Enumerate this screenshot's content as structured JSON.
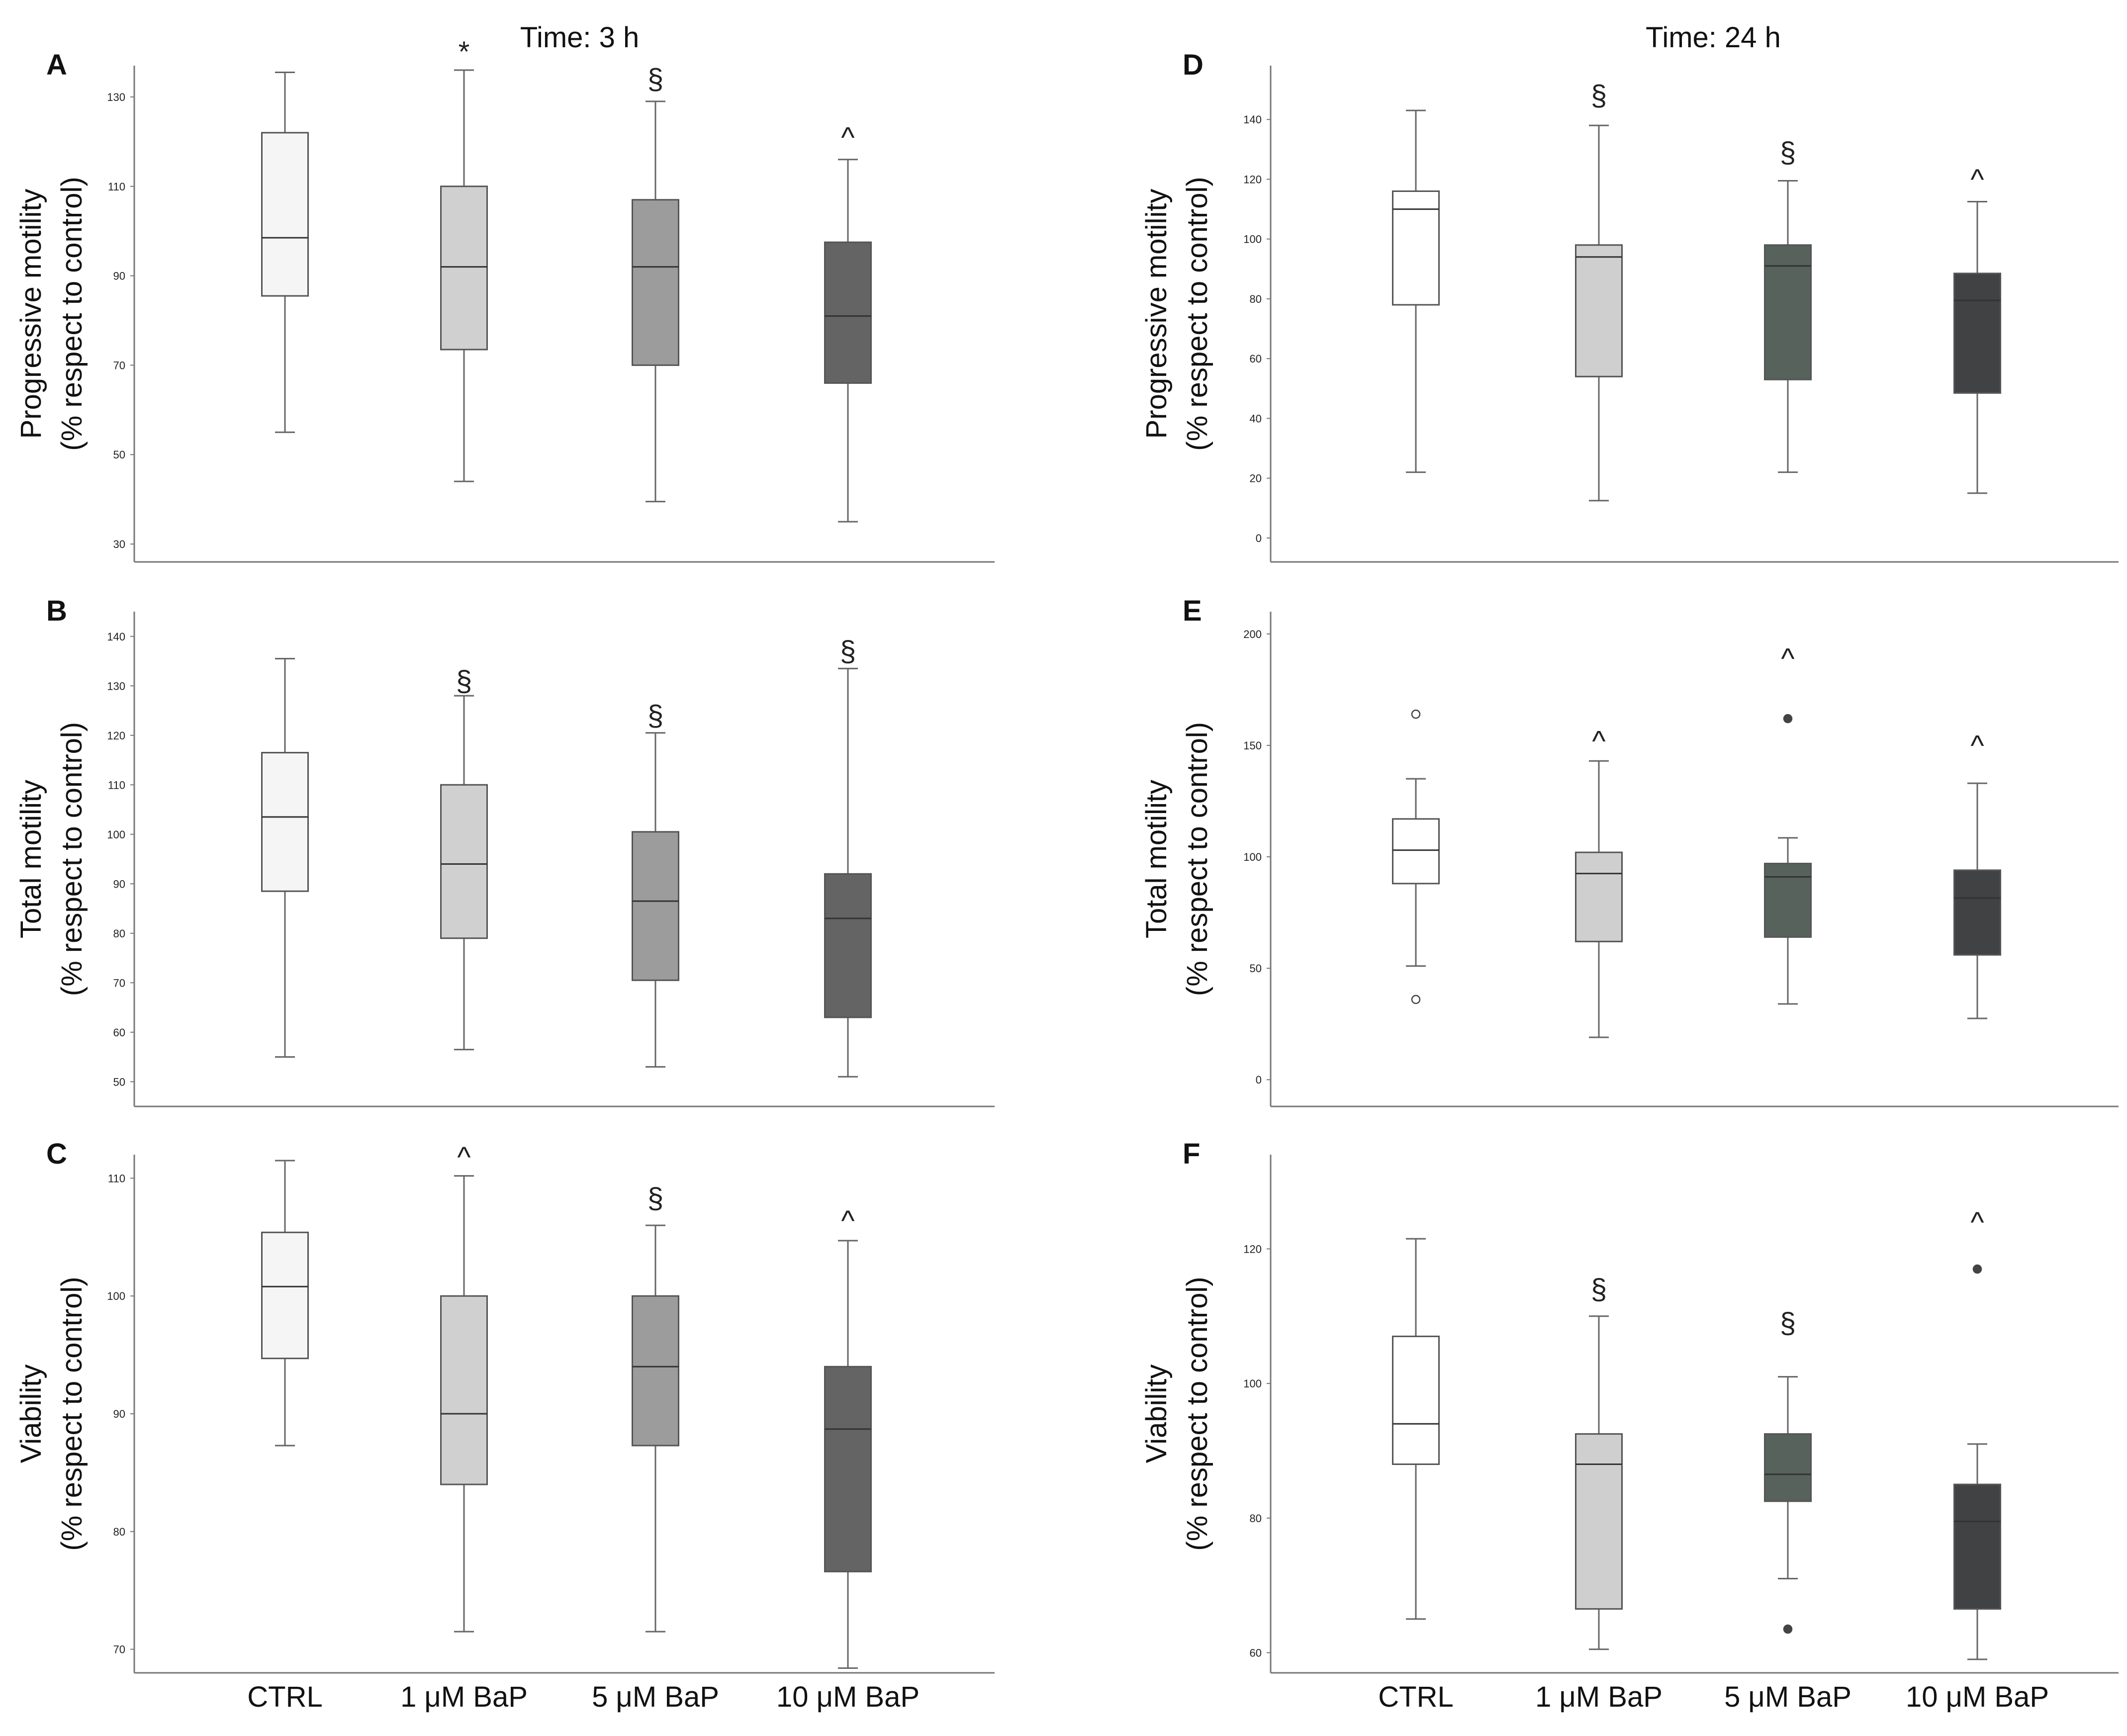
{
  "categories": [
    "CTRL",
    "1 μM BaP",
    "5 μM BaP",
    "10 μM BaP"
  ],
  "chart_data": [
    {
      "type": "box",
      "panel": "A",
      "title": "Time: 3 h",
      "ylabel_line1": "Progressive motility",
      "ylabel_line2": "(% respect to control)",
      "ylim": [
        26,
        137
      ],
      "yticks": [
        30,
        50,
        70,
        90,
        110,
        130
      ],
      "boxes": [
        {
          "category": "CTRL",
          "whisker_low": 55,
          "q1": 85.5,
          "median": 98.5,
          "q3": 122,
          "whisker_high": 135.5,
          "color": "#f5f5f5",
          "outliers": []
        },
        {
          "category": "1 μM BaP",
          "whisker_low": 44,
          "q1": 73.5,
          "median": 92,
          "q3": 110,
          "whisker_high": 136,
          "color": "#d0d0d0",
          "outliers": []
        },
        {
          "category": "5 μM BaP",
          "whisker_low": 39.5,
          "q1": 70,
          "median": 92,
          "q3": 107,
          "whisker_high": 129,
          "color": "#9c9c9c",
          "outliers": []
        },
        {
          "category": "10 μM BaP",
          "whisker_low": 35,
          "q1": 66,
          "median": 81,
          "q3": 97.5,
          "whisker_high": 116,
          "color": "#646464",
          "outliers": []
        }
      ],
      "annotations": [
        {
          "category": "1 μM BaP",
          "text": "*",
          "y": 141
        },
        {
          "category": "5 μM BaP",
          "text": "§",
          "y": 134
        },
        {
          "category": "10 μM BaP",
          "text": "^",
          "y": 121
        }
      ]
    },
    {
      "type": "box",
      "panel": "B",
      "title": "",
      "ylabel_line1": "Total motility",
      "ylabel_line2": "(% respect to control)",
      "ylim": [
        45,
        145
      ],
      "yticks": [
        50,
        60,
        70,
        80,
        90,
        100,
        110,
        120,
        130,
        140
      ],
      "boxes": [
        {
          "category": "CTRL",
          "whisker_low": 55,
          "q1": 88.5,
          "median": 103.5,
          "q3": 116.5,
          "whisker_high": 135.5,
          "color": "#f5f5f5",
          "outliers": []
        },
        {
          "category": "1 μM BaP",
          "whisker_low": 56.5,
          "q1": 79,
          "median": 94,
          "q3": 110,
          "whisker_high": 128,
          "color": "#d0d0d0",
          "outliers": []
        },
        {
          "category": "5 μM BaP",
          "whisker_low": 53,
          "q1": 70.5,
          "median": 86.5,
          "q3": 100.5,
          "whisker_high": 120.5,
          "color": "#9c9c9c",
          "outliers": []
        },
        {
          "category": "10 μM BaP",
          "whisker_low": 51,
          "q1": 63,
          "median": 83,
          "q3": 92,
          "whisker_high": 133.5,
          "color": "#646464",
          "outliers": []
        }
      ],
      "annotations": [
        {
          "category": "1 μM BaP",
          "text": "§",
          "y": 131
        },
        {
          "category": "5 μM BaP",
          "text": "§",
          "y": 124
        },
        {
          "category": "10 μM BaP",
          "text": "§",
          "y": 137
        }
      ]
    },
    {
      "type": "box",
      "panel": "C",
      "title": "",
      "ylabel_line1": "Viability",
      "ylabel_line2": "(% respect to control)",
      "ylim": [
        68,
        112
      ],
      "yticks": [
        70,
        80,
        90,
        100,
        110
      ],
      "boxes": [
        {
          "category": "CTRL",
          "whisker_low": 87.3,
          "q1": 94.7,
          "median": 100.8,
          "q3": 105.4,
          "whisker_high": 111.5,
          "color": "#f5f5f5",
          "outliers": []
        },
        {
          "category": "1 μM BaP",
          "whisker_low": 71.5,
          "q1": 84,
          "median": 90,
          "q3": 100,
          "whisker_high": 110.2,
          "color": "#d0d0d0",
          "outliers": []
        },
        {
          "category": "5 μM BaP",
          "whisker_low": 71.5,
          "q1": 87.3,
          "median": 94,
          "q3": 100,
          "whisker_high": 106,
          "color": "#9c9c9c",
          "outliers": []
        },
        {
          "category": "10 μM BaP",
          "whisker_low": 68.4,
          "q1": 76.6,
          "median": 88.7,
          "q3": 94,
          "whisker_high": 104.7,
          "color": "#646464",
          "outliers": []
        }
      ],
      "annotations": [
        {
          "category": "1 μM BaP",
          "text": "^",
          "y": 111.8
        },
        {
          "category": "5 μM BaP",
          "text": "§",
          "y": 108.3
        },
        {
          "category": "10 μM BaP",
          "text": "^",
          "y": 106.4
        }
      ]
    },
    {
      "type": "box",
      "panel": "D",
      "title": "Time: 24 h",
      "ylabel_line1": "Progressive motility",
      "ylabel_line2": "(% respect to control)",
      "ylim": [
        -8,
        158
      ],
      "yticks": [
        0,
        20,
        40,
        60,
        80,
        100,
        120,
        140
      ],
      "boxes": [
        {
          "category": "CTRL",
          "whisker_low": 22,
          "q1": 78,
          "median": 110,
          "q3": 116,
          "whisker_high": 143,
          "color": "#ffffff",
          "outliers": []
        },
        {
          "category": "1 μM BaP",
          "whisker_low": 12.5,
          "q1": 54,
          "median": 94,
          "q3": 98,
          "whisker_high": 138,
          "color": "#cfcfcf",
          "outliers": []
        },
        {
          "category": "5 μM BaP",
          "whisker_low": 22,
          "q1": 53,
          "median": 91,
          "q3": 98,
          "whisker_high": 119.5,
          "color": "#57625d",
          "outliers": []
        },
        {
          "category": "10 μM BaP",
          "whisker_low": 15,
          "q1": 48.5,
          "median": 79.5,
          "q3": 88.5,
          "whisker_high": 112.5,
          "color": "#414244",
          "outliers": []
        }
      ],
      "annotations": [
        {
          "category": "1 μM BaP",
          "text": "§",
          "y": 148
        },
        {
          "category": "5 μM BaP",
          "text": "§",
          "y": 129
        },
        {
          "category": "10 μM BaP",
          "text": "^",
          "y": 120
        }
      ]
    },
    {
      "type": "box",
      "panel": "E",
      "title": "",
      "ylabel_line1": "Total motility",
      "ylabel_line2": "(% respect to control)",
      "ylim": [
        -12,
        210
      ],
      "yticks": [
        0,
        50,
        100,
        150,
        200
      ],
      "boxes": [
        {
          "category": "CTRL",
          "whisker_low": 51,
          "q1": 88,
          "median": 103,
          "q3": 117,
          "whisker_high": 135,
          "color": "#ffffff",
          "outliers": [
            {
              "y": 164,
              "filled": false
            },
            {
              "y": 36,
              "filled": false
            }
          ]
        },
        {
          "category": "1 μM BaP",
          "whisker_low": 19,
          "q1": 62,
          "median": 92.5,
          "q3": 102,
          "whisker_high": 143,
          "color": "#cfcfcf",
          "outliers": []
        },
        {
          "category": "5 μM BaP",
          "whisker_low": 34,
          "q1": 64,
          "median": 91,
          "q3": 97,
          "whisker_high": 108.5,
          "color": "#57625d",
          "outliers": [
            {
              "y": 162,
              "filled": true
            }
          ]
        },
        {
          "category": "10 μM BaP",
          "whisker_low": 27.5,
          "q1": 56,
          "median": 81.5,
          "q3": 94,
          "whisker_high": 133,
          "color": "#414244",
          "outliers": []
        }
      ],
      "annotations": [
        {
          "category": "1 μM BaP",
          "text": "^",
          "y": 152
        },
        {
          "category": "5 μM BaP",
          "text": "^",
          "y": 189
        },
        {
          "category": "10 μM BaP",
          "text": "^",
          "y": 150
        }
      ]
    },
    {
      "type": "box",
      "panel": "F",
      "title": "",
      "ylabel_line1": "Viability",
      "ylabel_line2": "(% respect to control)",
      "ylim": [
        57,
        134
      ],
      "yticks": [
        60,
        80,
        100,
        120
      ],
      "boxes": [
        {
          "category": "CTRL",
          "whisker_low": 65,
          "q1": 88,
          "median": 94,
          "q3": 107,
          "whisker_high": 121.5,
          "color": "#ffffff",
          "outliers": []
        },
        {
          "category": "1 μM BaP",
          "whisker_low": 60.5,
          "q1": 66.5,
          "median": 88,
          "q3": 92.5,
          "whisker_high": 110,
          "color": "#cfcfcf",
          "outliers": []
        },
        {
          "category": "5 μM BaP",
          "whisker_low": 71,
          "q1": 82.5,
          "median": 86.5,
          "q3": 92.5,
          "whisker_high": 101,
          "color": "#57625d",
          "outliers": [
            {
              "y": 63.5,
              "filled": true
            }
          ]
        },
        {
          "category": "10 μM BaP",
          "whisker_low": 59,
          "q1": 66.5,
          "median": 79.5,
          "q3": 85,
          "whisker_high": 91,
          "color": "#414244",
          "outliers": [
            {
              "y": 117,
              "filled": true
            }
          ]
        }
      ],
      "annotations": [
        {
          "category": "1 μM BaP",
          "text": "§",
          "y": 114
        },
        {
          "category": "5 μM BaP",
          "text": "§",
          "y": 109
        },
        {
          "category": "10 μM BaP",
          "text": "^",
          "y": 124
        }
      ]
    }
  ]
}
